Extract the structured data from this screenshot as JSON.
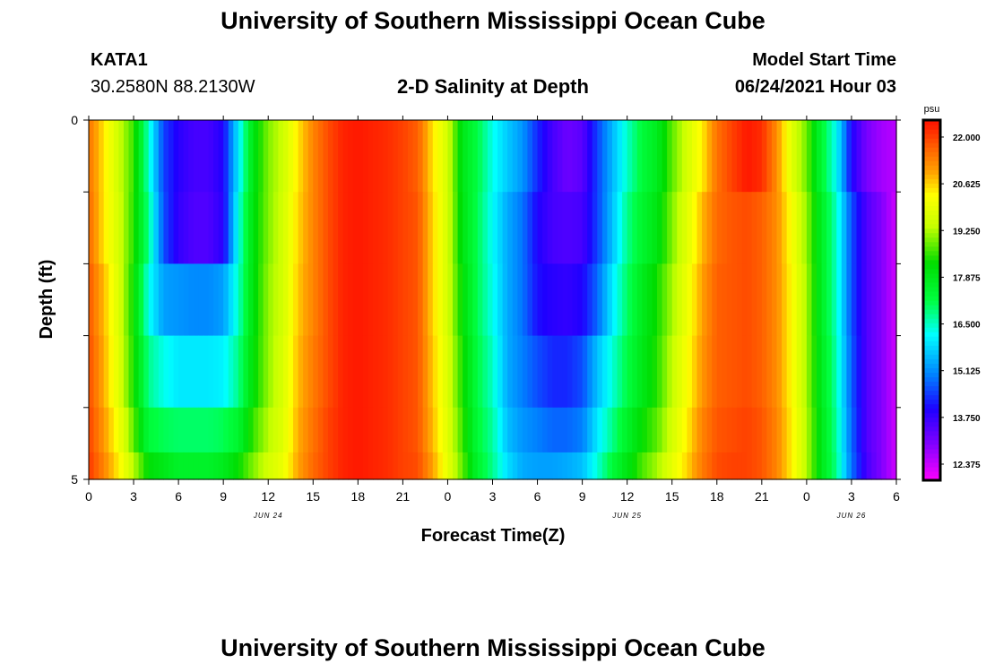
{
  "page": {
    "title_top": "University of Southern Mississippi Ocean Cube",
    "title_bottom": "University of Southern Mississippi Ocean Cube"
  },
  "header": {
    "station": "KATA1",
    "coords": "30.2580N  88.2130W",
    "plot_title": "2-D Salinity at Depth",
    "model_start_label": "Model Start Time",
    "model_start_value": "06/24/2021 Hour 03"
  },
  "chart_data": {
    "type": "heatmap",
    "title": "2-D Salinity at Depth",
    "xlabel": "Forecast Time(Z)",
    "ylabel": "Depth (ft)",
    "x_hours_since_jun24_00": [
      0,
      54
    ],
    "x_ticks": [
      "0",
      "3",
      "6",
      "9",
      "12",
      "15",
      "18",
      "21",
      "0",
      "3",
      "6",
      "9",
      "12",
      "15",
      "18",
      "21",
      "0",
      "3",
      "6"
    ],
    "day_labels": [
      {
        "label": "JUN 24",
        "hour": 12
      },
      {
        "label": "JUN 25",
        "hour": 36
      },
      {
        "label": "JUN 26",
        "hour": 51
      }
    ],
    "y_ticks": [
      "0",
      "5"
    ],
    "ylim": [
      0,
      5
    ],
    "depth_rows_ft": [
      0.5,
      1.5,
      2.5,
      3.5,
      4.5,
      4.75
    ],
    "hours": [
      0,
      1,
      2,
      3,
      4,
      5,
      6,
      7,
      8,
      9,
      10,
      11,
      12,
      13,
      14,
      15,
      16,
      17,
      18,
      19,
      20,
      21,
      22,
      23,
      24,
      25,
      26,
      27,
      28,
      29,
      30,
      31,
      32,
      33,
      34,
      35,
      36,
      37,
      38,
      39,
      40,
      41,
      42,
      43,
      44,
      45,
      46,
      47,
      48,
      49,
      50,
      51,
      52,
      53,
      54
    ],
    "salinity_psu": [
      [
        21.5,
        20.5,
        19.5,
        18.6,
        16.5,
        14.5,
        13.9,
        13.6,
        13.6,
        14.0,
        16.0,
        18.0,
        19.0,
        19.5,
        20.5,
        21.3,
        21.9,
        22.3,
        22.4,
        22.3,
        22.2,
        22.0,
        21.7,
        20.5,
        19.6,
        17.9,
        17.2,
        16.3,
        15.7,
        15.2,
        14.3,
        13.6,
        13.2,
        13.4,
        14.5,
        15.5,
        16.5,
        17.3,
        17.8,
        18.8,
        19.6,
        20.4,
        21.5,
        22.0,
        22.4,
        22.2,
        21.2,
        19.8,
        18.9,
        17.4,
        16.2,
        14.0,
        13.1,
        12.7,
        12.5
      ],
      [
        21.6,
        20.5,
        19.6,
        18.5,
        16.8,
        14.6,
        13.8,
        13.5,
        13.5,
        13.9,
        16.3,
        18.1,
        19.0,
        19.6,
        20.6,
        21.3,
        21.9,
        22.3,
        22.4,
        22.3,
        22.2,
        22.0,
        21.8,
        20.6,
        19.6,
        18.0,
        17.1,
        16.2,
        15.4,
        14.9,
        14.0,
        13.6,
        13.5,
        13.6,
        14.5,
        15.6,
        16.8,
        17.5,
        18.0,
        19.0,
        19.8,
        20.8,
        21.6,
        21.8,
        21.9,
        21.7,
        21.2,
        20.2,
        19.1,
        17.7,
        16.5,
        14.6,
        13.5,
        13.0,
        12.3
      ],
      [
        21.8,
        20.8,
        19.7,
        18.3,
        16.3,
        15.3,
        15.2,
        15.1,
        15.1,
        15.3,
        16.5,
        18.1,
        19.1,
        19.6,
        20.7,
        21.3,
        21.9,
        22.3,
        22.4,
        22.3,
        22.2,
        22.0,
        21.8,
        20.6,
        19.6,
        18.2,
        17.1,
        16.3,
        15.4,
        14.9,
        14.1,
        13.9,
        13.8,
        14.0,
        14.8,
        16.0,
        17.0,
        17.8,
        18.4,
        19.2,
        20.0,
        21.0,
        21.7,
        21.8,
        21.9,
        21.7,
        21.2,
        20.3,
        19.2,
        17.7,
        16.5,
        14.6,
        13.5,
        13.0,
        12.3
      ],
      [
        21.9,
        20.9,
        19.8,
        18.4,
        16.8,
        16.3,
        16.0,
        16.0,
        16.0,
        16.1,
        16.8,
        18.2,
        19.1,
        19.7,
        20.8,
        21.4,
        21.9,
        22.3,
        22.4,
        22.3,
        22.2,
        22.0,
        21.8,
        20.7,
        19.7,
        18.4,
        17.2,
        16.5,
        15.4,
        15.0,
        14.6,
        14.3,
        14.3,
        14.6,
        15.6,
        16.4,
        17.2,
        17.9,
        18.5,
        19.4,
        20.2,
        21.1,
        21.7,
        21.8,
        21.9,
        21.7,
        21.2,
        20.3,
        19.2,
        17.8,
        16.6,
        14.7,
        13.5,
        13.0,
        12.3
      ],
      [
        22.0,
        21.1,
        20.1,
        18.8,
        17.3,
        17.1,
        17.0,
        17.0,
        17.0,
        17.1,
        17.5,
        18.6,
        19.3,
        19.8,
        20.9,
        21.5,
        22.0,
        22.3,
        22.4,
        22.3,
        22.2,
        22.0,
        21.8,
        20.8,
        19.8,
        18.6,
        17.3,
        16.7,
        15.6,
        15.2,
        15.0,
        14.8,
        14.8,
        15.0,
        16.0,
        16.8,
        17.6,
        18.3,
        18.8,
        19.6,
        20.4,
        21.3,
        21.8,
        21.9,
        22.0,
        21.8,
        21.3,
        20.4,
        19.3,
        17.9,
        16.7,
        14.8,
        13.5,
        13.0,
        12.3
      ],
      [
        22.1,
        21.3,
        20.4,
        19.3,
        18.2,
        17.9,
        17.6,
        17.6,
        17.6,
        17.8,
        18.3,
        19.0,
        19.6,
        20.0,
        21.0,
        21.6,
        22.0,
        22.3,
        22.4,
        22.3,
        22.2,
        22.0,
        21.9,
        21.0,
        19.9,
        18.8,
        17.5,
        16.8,
        15.9,
        15.4,
        15.3,
        15.3,
        15.4,
        15.6,
        16.4,
        17.3,
        18.0,
        18.7,
        19.2,
        19.9,
        20.6,
        21.4,
        21.9,
        22.0,
        22.0,
        21.8,
        21.3,
        20.4,
        19.3,
        17.9,
        16.8,
        14.9,
        13.6,
        13.0,
        12.3
      ]
    ],
    "colorbar": {
      "unit": "psu",
      "min": 11.9,
      "max": 22.5,
      "labels": [
        "22.000",
        "20.625",
        "19.250",
        "17.875",
        "16.500",
        "15.125",
        "13.750",
        "12.375"
      ],
      "label_values": [
        22.0,
        20.625,
        19.25,
        17.875,
        16.5,
        15.125,
        13.75,
        12.375
      ],
      "stops": [
        {
          "v": 11.9,
          "c": "#ff00ff"
        },
        {
          "v": 13.0,
          "c": "#8000ff"
        },
        {
          "v": 14.0,
          "c": "#1e00ff"
        },
        {
          "v": 15.0,
          "c": "#0080ff"
        },
        {
          "v": 16.2,
          "c": "#00ffff"
        },
        {
          "v": 17.2,
          "c": "#00ff40"
        },
        {
          "v": 18.3,
          "c": "#00dc00"
        },
        {
          "v": 19.4,
          "c": "#c8ff00"
        },
        {
          "v": 20.3,
          "c": "#ffff00"
        },
        {
          "v": 21.0,
          "c": "#ffa000"
        },
        {
          "v": 21.7,
          "c": "#ff6000"
        },
        {
          "v": 22.4,
          "c": "#ff1800"
        }
      ]
    }
  }
}
